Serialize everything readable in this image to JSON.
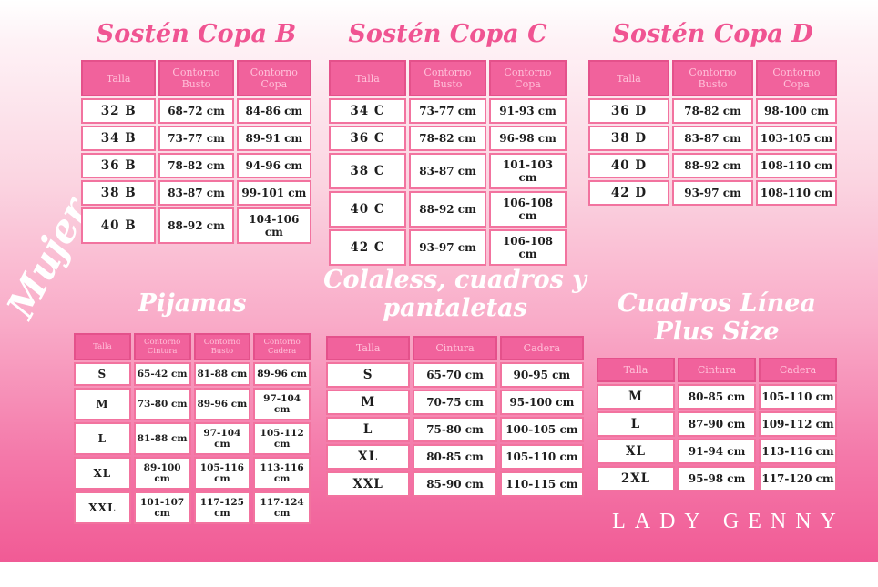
{
  "brand": "LADY GENNY",
  "side_label": "Mujer",
  "colors": {
    "header_fill": "#f1629c",
    "header_border": "#e4518b",
    "header_text": "#ffc0d9",
    "cell_border": "#f2739f",
    "cell_text": "#1d1d1d",
    "pink_title": "#f05492",
    "white_title": "#ffffff",
    "gradient_top": "#ffffff",
    "gradient_bottom": "#f05a95"
  },
  "chart_data": [
    {
      "type": "table",
      "title": "Sostén Copa B",
      "headers": [
        "Talla",
        "Contorno Busto",
        "Contorno Copa"
      ],
      "rows": [
        [
          "32 B",
          "68-72 cm",
          "84-86 cm"
        ],
        [
          "34 B",
          "73-77 cm",
          "89-91 cm"
        ],
        [
          "36 B",
          "78-82 cm",
          "94-96 cm"
        ],
        [
          "38 B",
          "83-87 cm",
          "99-101 cm"
        ],
        [
          "40 B",
          "88-92 cm",
          "104-106 cm"
        ]
      ]
    },
    {
      "type": "table",
      "title": "Sostén Copa C",
      "headers": [
        "Talla",
        "Contorno Busto",
        "Contorno Copa"
      ],
      "rows": [
        [
          "34 C",
          "73-77 cm",
          "91-93 cm"
        ],
        [
          "36 C",
          "78-82 cm",
          "96-98 cm"
        ],
        [
          "38 C",
          "83-87 cm",
          "101-103 cm"
        ],
        [
          "40 C",
          "88-92 cm",
          "106-108 cm"
        ],
        [
          "42 C",
          "93-97 cm",
          "106-108 cm"
        ]
      ]
    },
    {
      "type": "table",
      "title": "Sostén Copa D",
      "headers": [
        "Talla",
        "Contorno Busto",
        "Contorno Copa"
      ],
      "rows": [
        [
          "36 D",
          "78-82 cm",
          "98-100 cm"
        ],
        [
          "38 D",
          "83-87 cm",
          "103-105 cm"
        ],
        [
          "40 D",
          "88-92 cm",
          "108-110 cm"
        ],
        [
          "42 D",
          "93-97 cm",
          "108-110 cm"
        ]
      ]
    },
    {
      "type": "table",
      "title": "Pijamas",
      "headers": [
        "Talla",
        "Contorno Cintura",
        "Contorno Busto",
        "Contorno Cadera"
      ],
      "rows": [
        [
          "S",
          "65-42 cm",
          "81-88 cm",
          "89-96 cm"
        ],
        [
          "M",
          "73-80 cm",
          "89-96 cm",
          "97-104 cm"
        ],
        [
          "L",
          "81-88 cm",
          "97-104 cm",
          "105-112 cm"
        ],
        [
          "XL",
          "89-100 cm",
          "105-116 cm",
          "113-116 cm"
        ],
        [
          "XXL",
          "101-107 cm",
          "117-125 cm",
          "117-124 cm"
        ]
      ]
    },
    {
      "type": "table",
      "title": "Colaless, cuadros y pantaletas",
      "title_lines": [
        "Colaless, cuadros y",
        "pantaletas"
      ],
      "headers": [
        "Talla",
        "Cintura",
        "Cadera"
      ],
      "rows": [
        [
          "S",
          "65-70 cm",
          "90-95 cm"
        ],
        [
          "M",
          "70-75 cm",
          "95-100 cm"
        ],
        [
          "L",
          "75-80 cm",
          "100-105 cm"
        ],
        [
          "XL",
          "80-85 cm",
          "105-110 cm"
        ],
        [
          "XXL",
          "85-90 cm",
          "110-115 cm"
        ]
      ]
    },
    {
      "type": "table",
      "title": "Cuadros Línea Plus Size",
      "headers": [
        "Talla",
        "Cintura",
        "Cadera"
      ],
      "rows": [
        [
          "M",
          "80-85 cm",
          "105-110 cm"
        ],
        [
          "L",
          "87-90 cm",
          "109-112 cm"
        ],
        [
          "XL",
          "91-94 cm",
          "113-116 cm"
        ],
        [
          "2XL",
          "95-98 cm",
          "117-120 cm"
        ]
      ]
    }
  ]
}
